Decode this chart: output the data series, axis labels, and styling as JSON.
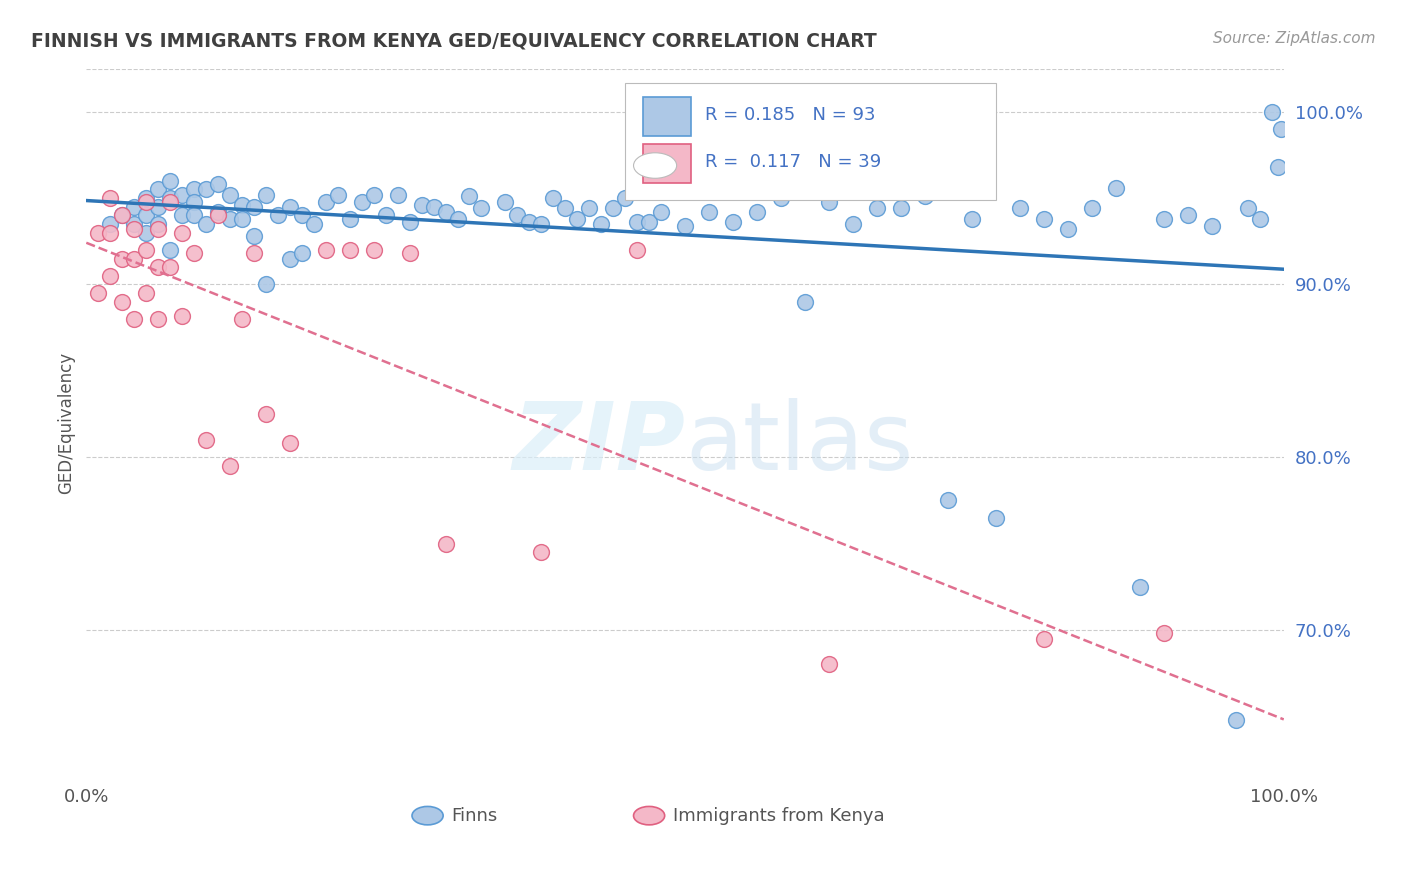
{
  "title": "FINNISH VS IMMIGRANTS FROM KENYA GED/EQUIVALENCY CORRELATION CHART",
  "source": "Source: ZipAtlas.com",
  "ylabel": "GED/Equivalency",
  "xlim": [
    0.0,
    1.0
  ],
  "ylim": [
    0.615,
    1.025
  ],
  "y_tick_values_right": [
    0.7,
    0.8,
    0.9,
    1.0
  ],
  "y_tick_labels_right": [
    "70.0%",
    "80.0%",
    "90.0%",
    "100.0%"
  ],
  "color_finn": "#adc8e6",
  "color_finn_edge": "#5b9bd5",
  "color_kenya": "#f4b8c8",
  "color_kenya_edge": "#e06080",
  "color_finn_line": "#2e75b6",
  "color_kenya_line": "#e07090",
  "color_title": "#404040",
  "color_r_value": "#4472c4",
  "color_axis_text": "#555555",
  "watermark_color": "#cde4f5",
  "background_color": "#ffffff",
  "grid_color": "#cccccc",
  "finn_x": [
    0.02,
    0.03,
    0.04,
    0.04,
    0.05,
    0.05,
    0.05,
    0.06,
    0.06,
    0.06,
    0.07,
    0.07,
    0.07,
    0.08,
    0.08,
    0.09,
    0.09,
    0.09,
    0.1,
    0.1,
    0.11,
    0.11,
    0.12,
    0.12,
    0.13,
    0.13,
    0.14,
    0.14,
    0.15,
    0.15,
    0.16,
    0.17,
    0.17,
    0.18,
    0.18,
    0.19,
    0.2,
    0.21,
    0.22,
    0.23,
    0.24,
    0.25,
    0.26,
    0.27,
    0.28,
    0.29,
    0.3,
    0.31,
    0.32,
    0.33,
    0.35,
    0.36,
    0.37,
    0.38,
    0.39,
    0.4,
    0.41,
    0.42,
    0.43,
    0.44,
    0.45,
    0.46,
    0.47,
    0.48,
    0.5,
    0.52,
    0.54,
    0.56,
    0.58,
    0.6,
    0.62,
    0.64,
    0.66,
    0.68,
    0.7,
    0.72,
    0.74,
    0.76,
    0.78,
    0.8,
    0.82,
    0.84,
    0.86,
    0.88,
    0.9,
    0.92,
    0.94,
    0.96,
    0.97,
    0.98,
    0.99,
    0.995,
    0.998
  ],
  "finn_y": [
    0.935,
    0.94,
    0.945,
    0.935,
    0.95,
    0.94,
    0.93,
    0.955,
    0.945,
    0.935,
    0.96,
    0.95,
    0.92,
    0.952,
    0.94,
    0.955,
    0.948,
    0.94,
    0.955,
    0.935,
    0.958,
    0.942,
    0.952,
    0.938,
    0.946,
    0.938,
    0.945,
    0.928,
    0.952,
    0.9,
    0.94,
    0.945,
    0.915,
    0.94,
    0.918,
    0.935,
    0.948,
    0.952,
    0.938,
    0.948,
    0.952,
    0.94,
    0.952,
    0.936,
    0.946,
    0.945,
    0.942,
    0.938,
    0.951,
    0.944,
    0.948,
    0.94,
    0.936,
    0.935,
    0.95,
    0.944,
    0.938,
    0.944,
    0.935,
    0.944,
    0.95,
    0.936,
    0.936,
    0.942,
    0.934,
    0.942,
    0.936,
    0.942,
    0.95,
    0.89,
    0.948,
    0.935,
    0.944,
    0.944,
    0.951,
    0.775,
    0.938,
    0.765,
    0.944,
    0.938,
    0.932,
    0.944,
    0.956,
    0.725,
    0.938,
    0.94,
    0.934,
    0.648,
    0.944,
    0.938,
    1.0,
    0.968,
    0.99
  ],
  "kenya_x": [
    0.01,
    0.01,
    0.02,
    0.02,
    0.02,
    0.03,
    0.03,
    0.03,
    0.04,
    0.04,
    0.04,
    0.05,
    0.05,
    0.05,
    0.06,
    0.06,
    0.06,
    0.07,
    0.07,
    0.08,
    0.08,
    0.09,
    0.1,
    0.11,
    0.12,
    0.13,
    0.14,
    0.15,
    0.17,
    0.2,
    0.22,
    0.24,
    0.27,
    0.3,
    0.38,
    0.46,
    0.62,
    0.8,
    0.9
  ],
  "kenya_y": [
    0.93,
    0.895,
    0.95,
    0.93,
    0.905,
    0.94,
    0.915,
    0.89,
    0.932,
    0.915,
    0.88,
    0.948,
    0.92,
    0.895,
    0.932,
    0.91,
    0.88,
    0.948,
    0.91,
    0.93,
    0.882,
    0.918,
    0.81,
    0.94,
    0.795,
    0.88,
    0.918,
    0.825,
    0.808,
    0.92,
    0.92,
    0.92,
    0.918,
    0.75,
    0.745,
    0.92,
    0.68,
    0.695,
    0.698
  ]
}
